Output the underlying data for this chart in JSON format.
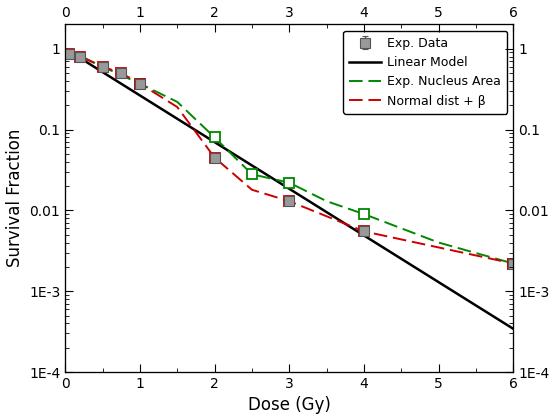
{
  "exp_data_x": [
    0.05,
    0.2,
    0.5,
    0.75,
    1.0,
    2.0,
    3.0,
    4.0,
    6.0
  ],
  "exp_data_y": [
    0.87,
    0.8,
    0.6,
    0.5,
    0.37,
    0.045,
    0.013,
    0.0055,
    0.0022
  ],
  "exp_data_yerr_lo": [
    0.04,
    0.04,
    0.03,
    0.02,
    0.015,
    0.004,
    0.001,
    0.0005,
    0.0002
  ],
  "exp_data_yerr_hi": [
    0.04,
    0.04,
    0.03,
    0.02,
    0.015,
    0.004,
    0.001,
    0.0005,
    0.0002
  ],
  "linear_model_alpha": 1.33,
  "green_x": [
    0.0,
    0.5,
    1.0,
    1.5,
    2.0,
    2.5,
    3.0,
    3.5,
    4.0,
    5.0,
    6.0
  ],
  "green_y": [
    1.0,
    0.6,
    0.37,
    0.22,
    0.08,
    0.028,
    0.022,
    0.013,
    0.009,
    0.004,
    0.0022
  ],
  "red_x": [
    0.0,
    0.05,
    0.2,
    0.5,
    0.75,
    1.0,
    1.5,
    2.0,
    2.5,
    3.0,
    4.0,
    6.0
  ],
  "red_y": [
    1.0,
    0.87,
    0.8,
    0.6,
    0.5,
    0.37,
    0.19,
    0.045,
    0.018,
    0.013,
    0.0055,
    0.0022
  ],
  "exp_data_color": "#999999",
  "linear_model_color": "#000000",
  "green_color": "#008800",
  "red_color": "#cc0000",
  "xlabel": "Dose (Gy)",
  "ylabel": "Survival Fraction",
  "xlim": [
    0,
    6
  ],
  "ylim_log": [
    0.0001,
    2.0
  ],
  "legend_labels": [
    "Exp. Data",
    "Linear Model",
    "Exp. Nucleus Area",
    "Normal dist + β"
  ],
  "ytick_major": [
    0.0001,
    0.001,
    0.01,
    0.1,
    1
  ],
  "xtick_major": [
    0,
    1,
    2,
    3,
    4,
    5,
    6
  ]
}
